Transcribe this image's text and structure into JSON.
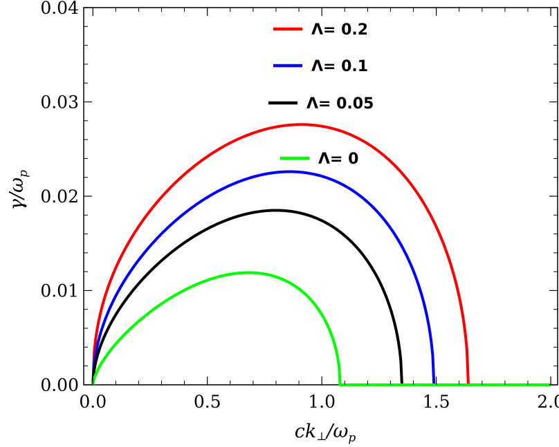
{
  "chart_data": {
    "type": "line",
    "title": "",
    "xlabel": "ck⊥/ωp",
    "ylabel": "γ/ωp",
    "xlim": [
      -0.04,
      2.03
    ],
    "ylim": [
      0,
      0.04
    ],
    "x_ticks": [
      "0.0",
      "0.5",
      "1.0",
      "1.5",
      "2.0"
    ],
    "x_tick_values": [
      0,
      0.5,
      1.0,
      1.5,
      2.0
    ],
    "y_ticks": [
      "0.00",
      "0.01",
      "0.02",
      "0.03",
      "0.04"
    ],
    "y_tick_values": [
      0,
      0.01,
      0.02,
      0.03,
      0.04
    ],
    "grid": false,
    "legend_position": "top-center",
    "series": [
      {
        "name": "Λ= 0.2",
        "color": "#ff0000",
        "peak_x": 0.91,
        "peak_y": 0.0276,
        "cutoff_x": 1.64
      },
      {
        "name": "Λ= 0.1",
        "color": "#0000ff",
        "peak_x": 0.86,
        "peak_y": 0.0226,
        "cutoff_x": 1.49
      },
      {
        "name": "Λ= 0.05",
        "color": "#000000",
        "peak_x": 0.8,
        "peak_y": 0.0185,
        "cutoff_x": 1.35
      },
      {
        "name": "Λ= 0",
        "color": "#00ff00",
        "peak_x": 0.68,
        "peak_y": 0.0119,
        "cutoff_x": 1.08
      }
    ]
  }
}
